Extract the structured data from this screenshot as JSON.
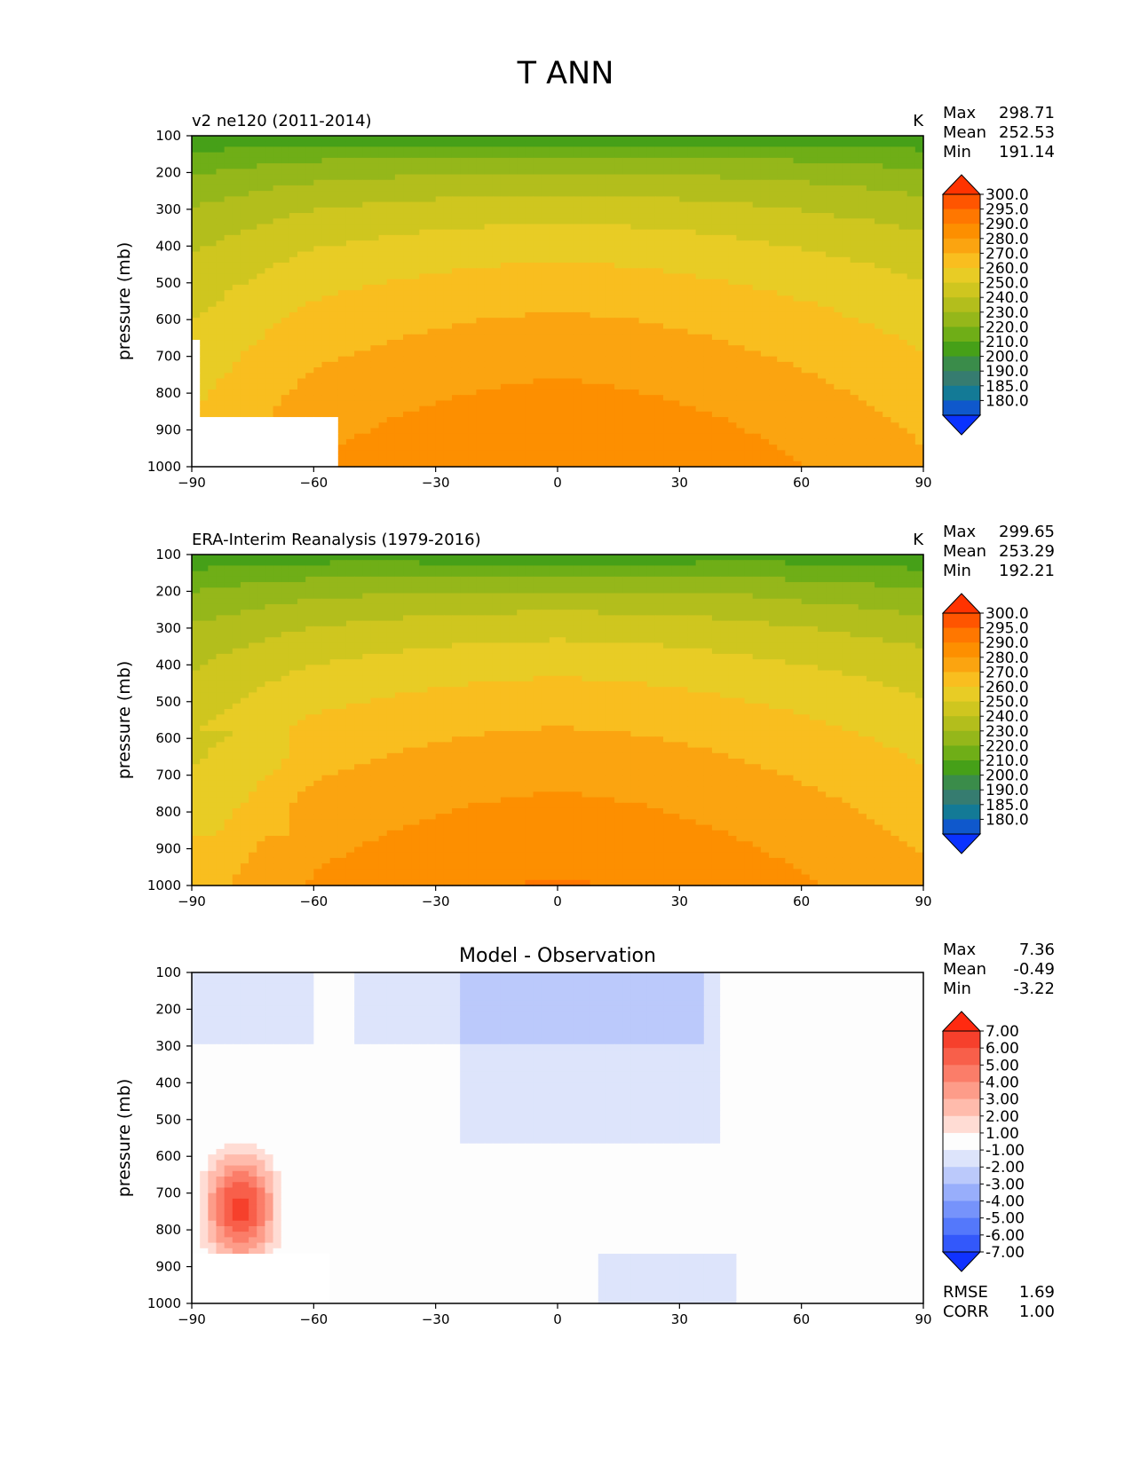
{
  "figure_title": "T ANN",
  "chart_data": [
    {
      "type": "contour",
      "title": "v2 ne120 (2011-2014)",
      "units": "K",
      "ylabel": "pressure (mb)",
      "xlabel": "",
      "xlim": [
        -90,
        90
      ],
      "ylim": [
        1000,
        100
      ],
      "xticks": [
        "−90",
        "−60",
        "−30",
        "0",
        "30",
        "60",
        "90"
      ],
      "yticks": [
        "100",
        "200",
        "300",
        "400",
        "500",
        "600",
        "700",
        "800",
        "900",
        "1000"
      ],
      "stats": [
        {
          "label": "Max",
          "value": "298.71"
        },
        {
          "label": "Mean",
          "value": "252.53"
        },
        {
          "label": "Min",
          "value": "191.14"
        }
      ],
      "colorbar": {
        "levels": [
          "300.0",
          "295.0",
          "290.0",
          "280.0",
          "270.0",
          "260.0",
          "250.0",
          "240.0",
          "230.0",
          "220.0",
          "210.0",
          "200.0",
          "190.0",
          "185.0",
          "180.0"
        ],
        "colors": [
          "#ff3300",
          "#ff5500",
          "#ff7700",
          "#fd8f00",
          "#fba410",
          "#f9be1f",
          "#e8cc25",
          "#cfc61f",
          "#b3be1c",
          "#95b71a",
          "#6fae17",
          "#46a018",
          "#3a8c4a",
          "#367c70",
          "#137a96",
          "#0f58cc",
          "#0a32ff"
        ]
      },
      "field": "model"
    },
    {
      "type": "contour",
      "title": "ERA-Interim Reanalysis (1979-2016)",
      "units": "K",
      "ylabel": "pressure (mb)",
      "xlabel": "",
      "xlim": [
        -90,
        90
      ],
      "ylim": [
        1000,
        100
      ],
      "xticks": [
        "−90",
        "−60",
        "−30",
        "0",
        "30",
        "60",
        "90"
      ],
      "yticks": [
        "100",
        "200",
        "300",
        "400",
        "500",
        "600",
        "700",
        "800",
        "900",
        "1000"
      ],
      "stats": [
        {
          "label": "Max",
          "value": "299.65"
        },
        {
          "label": "Mean",
          "value": "253.29"
        },
        {
          "label": "Min",
          "value": "192.21"
        }
      ],
      "colorbar": {
        "levels": [
          "300.0",
          "295.0",
          "290.0",
          "280.0",
          "270.0",
          "260.0",
          "250.0",
          "240.0",
          "230.0",
          "220.0",
          "210.0",
          "200.0",
          "190.0",
          "185.0",
          "180.0"
        ],
        "colors": [
          "#ff3300",
          "#ff5500",
          "#ff7700",
          "#fd8f00",
          "#fba410",
          "#f9be1f",
          "#e8cc25",
          "#cfc61f",
          "#b3be1c",
          "#95b71a",
          "#6fae17",
          "#46a018",
          "#3a8c4a",
          "#367c70",
          "#137a96",
          "#0f58cc",
          "#0a32ff"
        ]
      },
      "field": "obs"
    },
    {
      "type": "contour",
      "title": "Model - Observation",
      "units": "",
      "ylabel": "pressure (mb)",
      "xlabel": "",
      "xlim": [
        -90,
        90
      ],
      "ylim": [
        1000,
        100
      ],
      "xticks": [
        "−90",
        "−60",
        "−30",
        "0",
        "30",
        "60",
        "90"
      ],
      "yticks": [
        "100",
        "200",
        "300",
        "400",
        "500",
        "600",
        "700",
        "800",
        "900",
        "1000"
      ],
      "stats": [
        {
          "label": "Max",
          "value": "7.36"
        },
        {
          "label": "Mean",
          "value": "-0.49"
        },
        {
          "label": "Min",
          "value": "-3.22"
        }
      ],
      "colorbar": {
        "levels": [
          "7.00",
          "6.00",
          "5.00",
          "4.00",
          "3.00",
          "2.00",
          "1.00",
          "-1.00",
          "-2.00",
          "-3.00",
          "-4.00",
          "-5.00",
          "-6.00",
          "-7.00"
        ],
        "colors": [
          "#ff2a10",
          "#f6402c",
          "#f85f4a",
          "#fb7d69",
          "#fd9c89",
          "#ffbbac",
          "#ffdcd4",
          "#fdfdfd",
          "#dde4fb",
          "#bbc9fb",
          "#98aefb",
          "#7693fb",
          "#5478fb",
          "#3358fb",
          "#1032ff"
        ]
      },
      "metrics": [
        {
          "label": "RMSE",
          "value": "1.69"
        },
        {
          "label": "CORR",
          "value": "1.00"
        }
      ],
      "field": "diff"
    }
  ]
}
